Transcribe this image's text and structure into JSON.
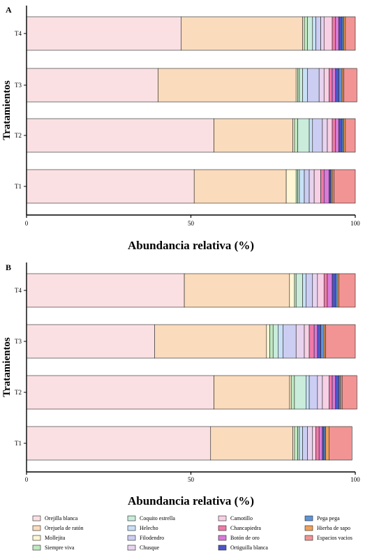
{
  "colors": {
    "Orejilla blanca": "#fbe0e3",
    "Orejuela de ratón": "#fadbbc",
    "Mollejita": "#fff6d5",
    "Siempre viva": "#bfe8bf",
    "Coquito estrella": "#c9ecdb",
    "Helecho": "#c7e0f5",
    "Filodendro": "#cccdf2",
    "Chusque": "#e8d3ef",
    "Camotillo": "#f8d0e6",
    "Chancapiedra": "#f07aa8",
    "Botón de oro": "#d97ad9",
    "Ortiguilla blanca": "#4c56c8",
    "Pega pega": "#5f94d6",
    "Hierba de sapo": "#f0a05a",
    "Espacios vacíos": "#f29494"
  },
  "chart_data": [
    {
      "panel": "A",
      "type": "bar",
      "orientation": "horizontal",
      "stacked": true,
      "categories": [
        "T4",
        "T3",
        "T2",
        "T1"
      ],
      "xlabel": "Abundancia relativa (%)",
      "ylabel": "Tratamientos",
      "xlim": [
        0,
        100
      ],
      "xticks": [
        0,
        50,
        100
      ],
      "series": [
        {
          "name": "Orejilla blanca",
          "values": [
            47,
            40,
            57,
            51
          ]
        },
        {
          "name": "Orejuela de ratón",
          "values": [
            37,
            42,
            24,
            28
          ]
        },
        {
          "name": "Mollejita",
          "values": [
            0.5,
            0.5,
            0.5,
            3
          ]
        },
        {
          "name": "Siempre viva",
          "values": [
            1,
            0.5,
            1,
            0.5
          ]
        },
        {
          "name": "Coquito estrella",
          "values": [
            1.5,
            1,
            3.5,
            0.5
          ]
        },
        {
          "name": "Helecho",
          "values": [
            1,
            1.5,
            1,
            1.5
          ]
        },
        {
          "name": "Filodendro",
          "values": [
            1.5,
            3.5,
            3,
            1.5
          ]
        },
        {
          "name": "Chusque",
          "values": [
            1,
            1.5,
            1.5,
            1.5
          ]
        },
        {
          "name": "Camotillo",
          "values": [
            2.5,
            1.5,
            1.5,
            2
          ]
        },
        {
          "name": "Chancapiedra",
          "values": [
            1,
            1,
            1,
            1
          ]
        },
        {
          "name": "Botón de oro",
          "values": [
            1,
            1,
            1,
            1.5
          ]
        },
        {
          "name": "Ortiguilla blanca",
          "values": [
            1,
            1,
            1,
            0.5
          ]
        },
        {
          "name": "Pega pega",
          "values": [
            0.5,
            1,
            0.5,
            0.5
          ]
        },
        {
          "name": "Hierba de sapo",
          "values": [
            0.5,
            0.5,
            0.5,
            0.5
          ]
        },
        {
          "name": "Espacios vacíos",
          "values": [
            3,
            4,
            3,
            6.5
          ]
        }
      ]
    },
    {
      "panel": "B",
      "type": "bar",
      "orientation": "horizontal",
      "stacked": true,
      "categories": [
        "T4",
        "T3",
        "T2",
        "T1"
      ],
      "xlabel": "Abundancia relativa (%)",
      "ylabel": "Tratamientos",
      "xlim": [
        0,
        100
      ],
      "xticks": [
        0,
        50,
        100
      ],
      "series": [
        {
          "name": "Orejilla blanca",
          "values": [
            48,
            39,
            57,
            56
          ]
        },
        {
          "name": "Orejuela de ratón",
          "values": [
            32,
            34,
            23,
            25
          ]
        },
        {
          "name": "Mollejita",
          "values": [
            1.5,
            1,
            0.5,
            0.5
          ]
        },
        {
          "name": "Siempre viva",
          "values": [
            0.5,
            1,
            1,
            1
          ]
        },
        {
          "name": "Coquito estrella",
          "values": [
            2,
            1.5,
            3.5,
            0.5
          ]
        },
        {
          "name": "Helecho",
          "values": [
            1,
            1.5,
            1,
            1
          ]
        },
        {
          "name": "Filodendro",
          "values": [
            2,
            4,
            2.5,
            1.5
          ]
        },
        {
          "name": "Chusque",
          "values": [
            1.5,
            2.5,
            1.5,
            1.5
          ]
        },
        {
          "name": "Camotillo",
          "values": [
            2,
            1.5,
            2,
            1
          ]
        },
        {
          "name": "Chancapiedra",
          "values": [
            1,
            1.5,
            1,
            1
          ]
        },
        {
          "name": "Botón de oro",
          "values": [
            1.5,
            1,
            1,
            1
          ]
        },
        {
          "name": "Ortiguilla blanca",
          "values": [
            1,
            1,
            1,
            0.5
          ]
        },
        {
          "name": "Pega pega",
          "values": [
            0.5,
            1,
            0.5,
            0.5
          ]
        },
        {
          "name": "Hierba de sapo",
          "values": [
            0.5,
            0.5,
            0.5,
            1
          ]
        },
        {
          "name": "Espacios vacíos",
          "values": [
            5,
            9,
            4.5,
            7
          ]
        }
      ]
    }
  ],
  "legend": {
    "columns": [
      [
        "Orejilla blanca",
        "Orejuela de ratón",
        "Mollejita",
        "Siempre viva"
      ],
      [
        "Coquito estrella",
        "Helecho",
        "Filodendro",
        "Chusque"
      ],
      [
        "Camotillo",
        "Chancapiedra",
        "Botón de oro",
        "Ortiguilla blanca"
      ],
      [
        "Pega pega",
        "Hierba de sapo",
        "Espacios vacios"
      ]
    ],
    "color_keys": [
      [
        "Orejilla blanca",
        "Orejuela de ratón",
        "Mollejita",
        "Siempre viva"
      ],
      [
        "Coquito estrella",
        "Helecho",
        "Filodendro",
        "Chusque"
      ],
      [
        "Camotillo",
        "Chancapiedra",
        "Botón de oro",
        "Ortiguilla blanca"
      ],
      [
        "Pega pega",
        "Hierba de sapo",
        "Espacios vacíos"
      ]
    ]
  }
}
